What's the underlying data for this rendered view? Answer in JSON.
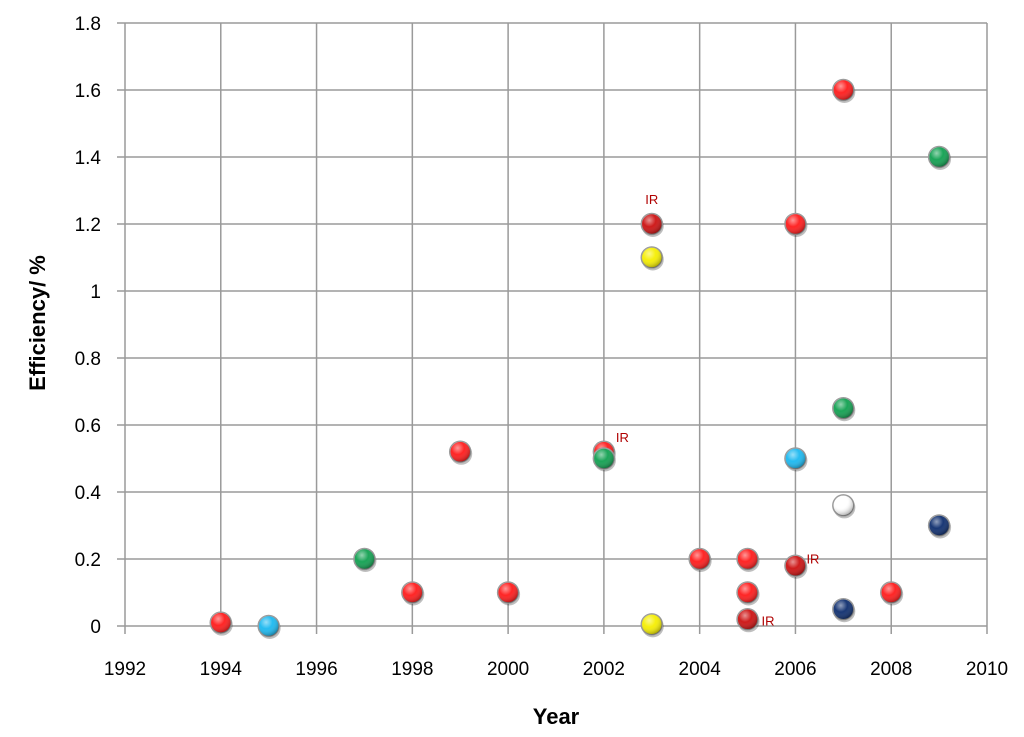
{
  "chart_data": {
    "type": "scatter",
    "title": "",
    "xlabel": "Year",
    "ylabel": "Efficiency/ %",
    "xlim": [
      1992,
      2010
    ],
    "ylim": [
      0,
      1.8
    ],
    "x_ticks": [
      1992,
      1994,
      1996,
      1998,
      2000,
      2002,
      2004,
      2006,
      2008,
      2010
    ],
    "y_ticks": [
      0,
      0.2,
      0.4,
      0.6,
      0.8,
      1,
      1.2,
      1.4,
      1.6,
      1.8
    ],
    "y_tick_labels": [
      "0",
      "0.2",
      "0.4",
      "0.6",
      "0.8",
      "1",
      "1.2",
      "1.4",
      "1.6",
      "1.8"
    ],
    "grid": true,
    "legend": "none",
    "point_annotation_text": "IR",
    "colors": {
      "red": "#ff1a1a",
      "dark_red": "#cc1010",
      "green": "#10a050",
      "cyan": "#1ab8f0",
      "yellow": "#f5ee00",
      "white": "#ffffff",
      "navy": "#0d2d6e",
      "grid": "#9a9a9a",
      "annotation": "#b00000"
    },
    "points": [
      {
        "x": 1994,
        "y": 0.01,
        "color": "red"
      },
      {
        "x": 1995,
        "y": 0.0,
        "color": "cyan"
      },
      {
        "x": 1997,
        "y": 0.2,
        "color": "green"
      },
      {
        "x": 1998,
        "y": 0.1,
        "color": "red"
      },
      {
        "x": 1999,
        "y": 0.52,
        "color": "red"
      },
      {
        "x": 2000,
        "y": 0.1,
        "color": "red"
      },
      {
        "x": 2002,
        "y": 0.52,
        "color": "red",
        "label": "IR"
      },
      {
        "x": 2002,
        "y": 0.5,
        "color": "green"
      },
      {
        "x": 2003,
        "y": 1.2,
        "color": "dark_red",
        "label": "IR"
      },
      {
        "x": 2003,
        "y": 1.1,
        "color": "yellow"
      },
      {
        "x": 2003,
        "y": 0.005,
        "color": "yellow"
      },
      {
        "x": 2004,
        "y": 0.2,
        "color": "red"
      },
      {
        "x": 2005,
        "y": 0.2,
        "color": "red"
      },
      {
        "x": 2005,
        "y": 0.1,
        "color": "red"
      },
      {
        "x": 2005,
        "y": 0.02,
        "color": "dark_red",
        "label": "IR"
      },
      {
        "x": 2006,
        "y": 1.2,
        "color": "red"
      },
      {
        "x": 2006,
        "y": 0.5,
        "color": "cyan"
      },
      {
        "x": 2006,
        "y": 0.18,
        "color": "dark_red",
        "label": "IR"
      },
      {
        "x": 2007,
        "y": 1.6,
        "color": "red"
      },
      {
        "x": 2007,
        "y": 0.65,
        "color": "green"
      },
      {
        "x": 2007,
        "y": 0.36,
        "color": "white"
      },
      {
        "x": 2007,
        "y": 0.05,
        "color": "navy"
      },
      {
        "x": 2008,
        "y": 0.1,
        "color": "red"
      },
      {
        "x": 2009,
        "y": 1.4,
        "color": "green"
      },
      {
        "x": 2009,
        "y": 0.3,
        "color": "navy"
      }
    ]
  }
}
